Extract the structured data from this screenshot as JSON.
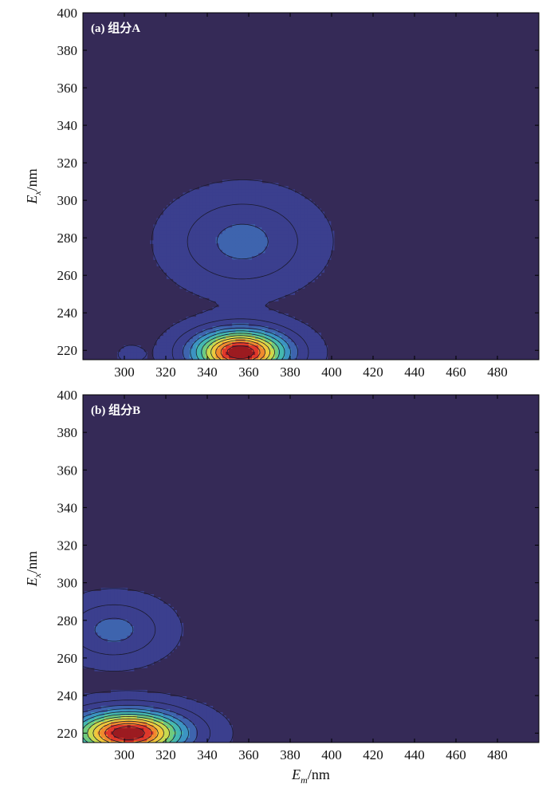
{
  "chart_data": [
    {
      "type": "contour",
      "panel_label": "(a) 组分A",
      "xlabel": "",
      "ylabel": {
        "main": "E",
        "sub": "x",
        "unit": "/nm"
      },
      "xlim": [
        280,
        500
      ],
      "ylim": [
        215,
        400
      ],
      "x_ticks": [
        300,
        320,
        340,
        360,
        380,
        400,
        420,
        440,
        460,
        480
      ],
      "y_ticks": [
        220,
        240,
        260,
        280,
        300,
        320,
        340,
        360,
        380,
        400
      ],
      "peaks": [
        {
          "em": 356,
          "ex": 219,
          "intensity": 1.0,
          "sigma_em": 15,
          "sigma_ex": 8,
          "note": "primary peak"
        },
        {
          "em": 357,
          "ex": 278,
          "intensity": 0.22,
          "sigma_em": 20,
          "sigma_ex": 15,
          "note": "secondary peak"
        },
        {
          "em": 303,
          "ex": 218,
          "intensity": 0.06,
          "sigma_em": 4,
          "sigma_ex": 3,
          "note": "small blob"
        }
      ]
    },
    {
      "type": "contour",
      "panel_label": "(b) 组分B",
      "xlabel": {
        "main": "E",
        "sub": "m",
        "unit": "/nm"
      },
      "ylabel": {
        "main": "E",
        "sub": "x",
        "unit": "/nm"
      },
      "xlim": [
        280,
        500
      ],
      "ylim": [
        215,
        400
      ],
      "x_ticks": [
        300,
        320,
        340,
        360,
        380,
        400,
        420,
        440,
        460,
        480
      ],
      "y_ticks": [
        220,
        240,
        260,
        280,
        300,
        320,
        340,
        360,
        380,
        400
      ],
      "peaks": [
        {
          "em": 302,
          "ex": 220,
          "intensity": 1.0,
          "sigma_em": 18,
          "sigma_ex": 8,
          "note": "primary peak"
        },
        {
          "em": 295,
          "ex": 275,
          "intensity": 0.22,
          "sigma_em": 15,
          "sigma_ex": 10,
          "note": "secondary peak"
        }
      ]
    }
  ],
  "colors": {
    "levels": [
      "#352a57",
      "#3b3f8e",
      "#3e64ae",
      "#3c94c2",
      "#44b8b0",
      "#6fcb7e",
      "#c9d94e",
      "#f0c63c",
      "#f08a2e",
      "#e0392b",
      "#9c1b20",
      "#5a0d10"
    ],
    "contour_line": "#1a1a2e",
    "panel_text": "#ffffff"
  }
}
